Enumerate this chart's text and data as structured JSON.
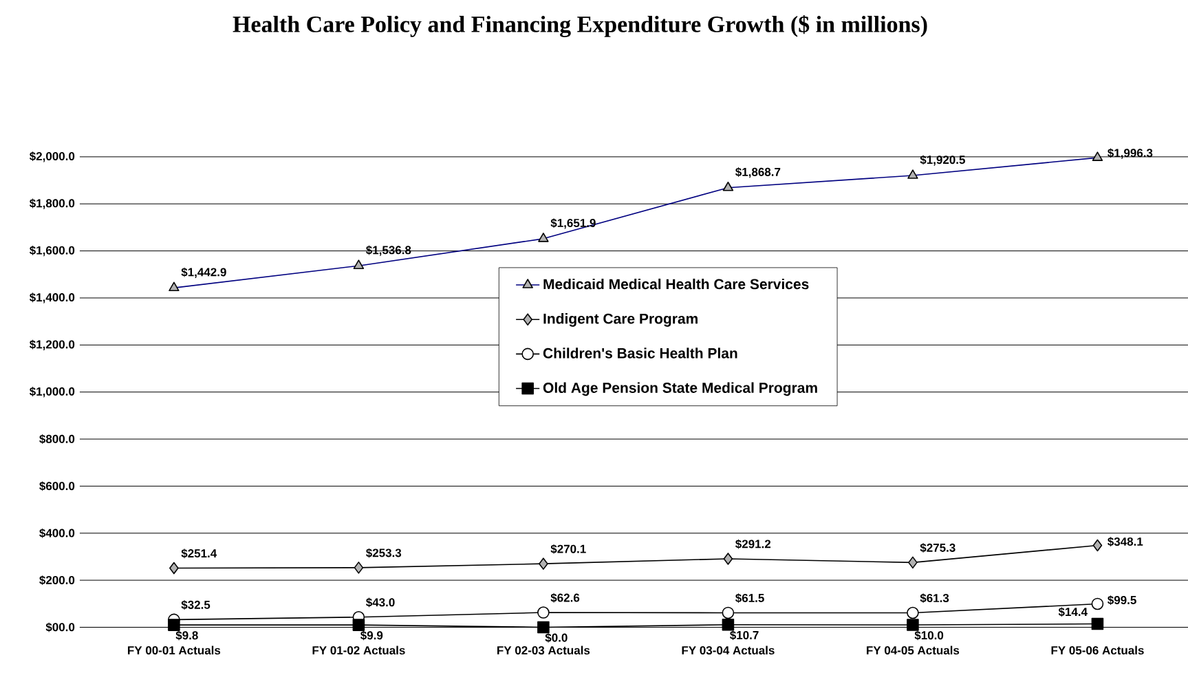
{
  "chart_data": {
    "type": "line",
    "title": "Health Care Policy and Financing Expenditure Growth ($ in millions)",
    "categories": [
      "FY 00-01 Actuals",
      "FY 01-02 Actuals",
      "FY 02-03 Actuals",
      "FY 03-04 Actuals",
      "FY 04-05 Actuals",
      "FY 05-06 Actuals"
    ],
    "series": [
      {
        "name": "Medicaid Medical Health Care Services",
        "color": "#000080",
        "marker": "triangle",
        "values": [
          1442.9,
          1536.8,
          1651.9,
          1868.7,
          1920.5,
          1996.3
        ],
        "value_labels": [
          "$1,442.9",
          "$1,536.8",
          "$1,651.9",
          "$1,868.7",
          "$1,920.5",
          "$1,996.3"
        ]
      },
      {
        "name": "Indigent Care Program",
        "color": "#000000",
        "marker": "diamond",
        "values": [
          251.4,
          253.3,
          270.1,
          291.2,
          275.3,
          348.1
        ],
        "value_labels": [
          "$251.4",
          "$253.3",
          "$270.1",
          "$291.2",
          "$275.3",
          "$348.1"
        ]
      },
      {
        "name": "Children's Basic Health Plan",
        "color": "#000000",
        "marker": "circle",
        "values": [
          32.5,
          43.0,
          62.6,
          61.5,
          61.3,
          99.5
        ],
        "value_labels": [
          "$32.5",
          "$43.0",
          "$62.6",
          "$61.5",
          "$61.3",
          "$99.5"
        ]
      },
      {
        "name": "Old Age Pension State Medical Program",
        "color": "#000000",
        "marker": "square",
        "values": [
          9.8,
          9.9,
          0.0,
          10.7,
          10.0,
          14.4
        ],
        "value_labels": [
          "$9.8",
          "$9.9",
          "$0.0",
          "$10.7",
          "$10.0",
          "$14.4"
        ]
      }
    ],
    "ylim": [
      0,
      2000
    ],
    "yticks": [
      {
        "value": 0,
        "label": "$00.0"
      },
      {
        "value": 200,
        "label": "$200.0"
      },
      {
        "value": 400,
        "label": "$400.0"
      },
      {
        "value": 600,
        "label": "$600.0"
      },
      {
        "value": 800,
        "label": "$800.0"
      },
      {
        "value": 1000,
        "label": "$1,000.0"
      },
      {
        "value": 1200,
        "label": "$1,200.0"
      },
      {
        "value": 1400,
        "label": "$1,400.0"
      },
      {
        "value": 1600,
        "label": "$1,600.0"
      },
      {
        "value": 1800,
        "label": "$1,800.0"
      },
      {
        "value": 2000,
        "label": "$2,000.0"
      }
    ],
    "grid": "y",
    "legend": "center"
  }
}
